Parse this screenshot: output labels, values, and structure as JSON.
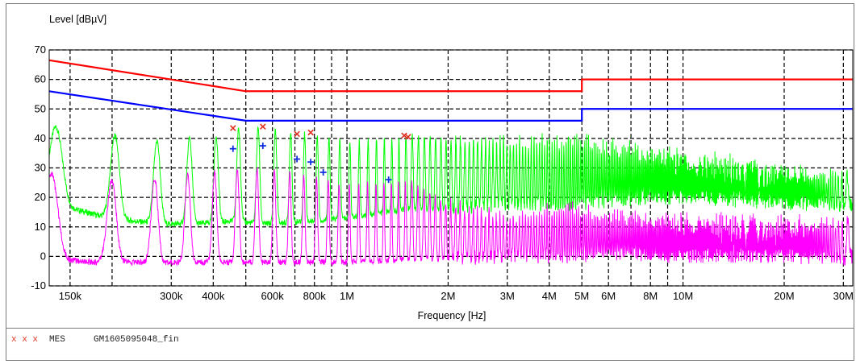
{
  "chart_data": {
    "type": "line",
    "title": "",
    "ylabel": "Level [dBµV]",
    "xlabel": "Frequency [Hz]",
    "xscale": "log",
    "xlim": [
      130000,
      32000000
    ],
    "ylim": [
      -10,
      70
    ],
    "y_ticks": [
      -10,
      0,
      10,
      20,
      30,
      40,
      50,
      60,
      70
    ],
    "x_ticks": [
      {
        "v": 150000,
        "label": "150k"
      },
      {
        "v": 300000,
        "label": "300k"
      },
      {
        "v": 400000,
        "label": "400k"
      },
      {
        "v": 600000,
        "label": "600k"
      },
      {
        "v": 800000,
        "label": "800k"
      },
      {
        "v": 1000000,
        "label": "1M"
      },
      {
        "v": 2000000,
        "label": "2M"
      },
      {
        "v": 3000000,
        "label": "3M"
      },
      {
        "v": 4000000,
        "label": "4M"
      },
      {
        "v": 5000000,
        "label": "5M"
      },
      {
        "v": 6000000,
        "label": "6M"
      },
      {
        "v": 8000000,
        "label": "8M"
      },
      {
        "v": 10000000,
        "label": "10M"
      },
      {
        "v": 20000000,
        "label": "20M"
      },
      {
        "v": 30000000,
        "label": "30M"
      }
    ],
    "grid_x": [
      150000,
      200000,
      300000,
      400000,
      500000,
      600000,
      700000,
      800000,
      900000,
      1000000,
      2000000,
      3000000,
      4000000,
      5000000,
      6000000,
      7000000,
      8000000,
      9000000,
      10000000,
      20000000,
      30000000
    ],
    "grid": true,
    "legend_position": "bottom",
    "series": [
      {
        "kind": "limit",
        "color": "#ff0000",
        "points": [
          [
            130000,
            66.5
          ],
          [
            500000,
            56
          ],
          [
            5000000,
            56
          ],
          [
            5000000,
            60
          ],
          [
            32000000,
            60
          ]
        ]
      },
      {
        "kind": "limit",
        "color": "#0000ff",
        "points": [
          [
            130000,
            56
          ],
          [
            500000,
            46
          ],
          [
            5000000,
            46
          ],
          [
            5000000,
            50
          ],
          [
            32000000,
            50
          ]
        ]
      },
      {
        "kind": "trace",
        "color": "#00ff00",
        "peaks": [
          [
            134000,
            44
          ],
          [
            180000,
            42
          ],
          [
            230000,
            40
          ],
          [
            285000,
            39
          ],
          [
            350000,
            40.5
          ],
          [
            420000,
            41
          ],
          [
            460000,
            43
          ],
          [
            560000,
            44
          ],
          [
            700000,
            42
          ],
          [
            800000,
            41.5
          ],
          [
            1000000,
            39
          ],
          [
            1500000,
            41
          ],
          [
            2000000,
            40
          ],
          [
            3000000,
            39
          ],
          [
            4500000,
            40.5
          ],
          [
            6000000,
            38
          ],
          [
            10000000,
            35
          ],
          [
            20000000,
            30
          ],
          [
            32000000,
            27
          ]
        ],
        "floors": [
          [
            134000,
            18
          ],
          [
            180000,
            14
          ],
          [
            230000,
            12
          ],
          [
            285000,
            11
          ],
          [
            350000,
            11
          ],
          [
            460000,
            12
          ],
          [
            560000,
            11
          ],
          [
            800000,
            12
          ],
          [
            1000000,
            13
          ],
          [
            1500000,
            16
          ],
          [
            2000000,
            16
          ],
          [
            3000000,
            18
          ],
          [
            4500000,
            17
          ],
          [
            6000000,
            19
          ],
          [
            10000000,
            20
          ],
          [
            20000000,
            18
          ],
          [
            32000000,
            17
          ]
        ]
      },
      {
        "kind": "trace",
        "color": "#ff00ff",
        "peaks": [
          [
            134000,
            28
          ],
          [
            180000,
            27
          ],
          [
            230000,
            24
          ],
          [
            285000,
            27
          ],
          [
            350000,
            28
          ],
          [
            460000,
            29
          ],
          [
            560000,
            30
          ],
          [
            800000,
            27
          ],
          [
            1000000,
            24
          ],
          [
            1500000,
            26
          ],
          [
            2000000,
            18
          ],
          [
            3000000,
            13
          ],
          [
            4500000,
            17
          ],
          [
            6000000,
            14
          ],
          [
            10000000,
            13
          ],
          [
            20000000,
            12
          ],
          [
            32000000,
            12
          ]
        ],
        "floors": [
          [
            134000,
            -1
          ],
          [
            180000,
            -2
          ],
          [
            230000,
            -2
          ],
          [
            285000,
            -2
          ],
          [
            350000,
            -2
          ],
          [
            460000,
            -2
          ],
          [
            560000,
            -2
          ],
          [
            800000,
            -2
          ],
          [
            1000000,
            -2
          ],
          [
            1500000,
            -1
          ],
          [
            2000000,
            -1
          ],
          [
            3000000,
            0
          ],
          [
            4500000,
            0
          ],
          [
            6000000,
            1
          ],
          [
            10000000,
            0
          ],
          [
            20000000,
            0
          ],
          [
            32000000,
            -1
          ]
        ]
      }
    ],
    "markers_red": [
      [
        458000,
        43.5
      ],
      [
        562000,
        44
      ],
      [
        710000,
        41.5
      ],
      [
        780000,
        42
      ],
      [
        1480000,
        41
      ],
      [
        1520000,
        40.5
      ]
    ],
    "markers_blue": [
      [
        458000,
        36.5
      ],
      [
        562000,
        37.5
      ],
      [
        710000,
        33
      ],
      [
        780000,
        32
      ],
      [
        850000,
        28.5
      ],
      [
        1330000,
        26
      ]
    ]
  },
  "legend": {
    "marks": "x x x",
    "label": "MES",
    "file": "GM1605095048_fin"
  }
}
